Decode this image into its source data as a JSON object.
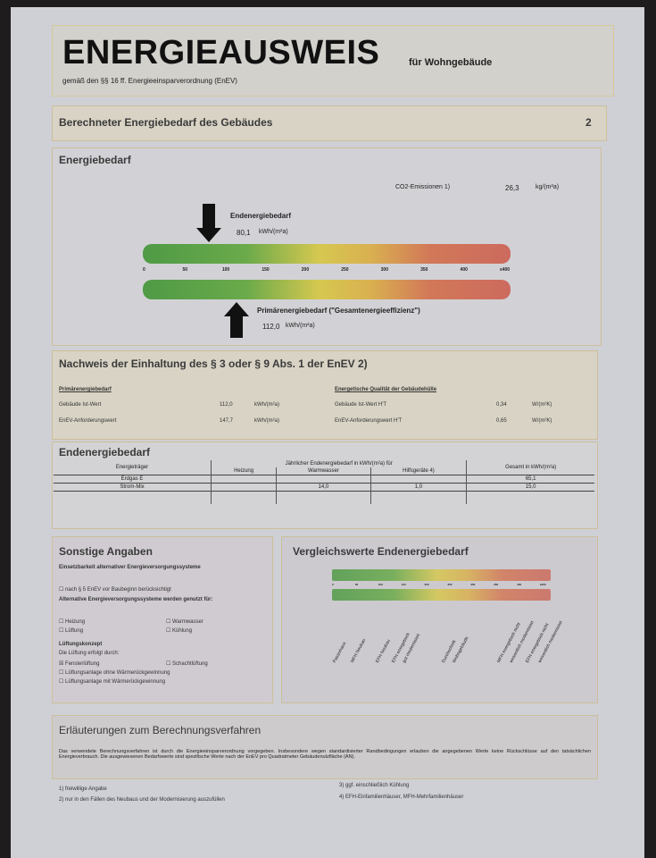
{
  "header": {
    "title": "ENERGIEAUSWEIS",
    "subtitle": "für Wohngebäude",
    "regulation": "gemäß den §§ 16 ff. Energieeinsparverordnung (EnEV)"
  },
  "section_bar": {
    "title": "Berechneter Energiebedarf des Gebäudes",
    "page_number": "2"
  },
  "energiebedarf": {
    "title": "Energiebedarf",
    "co2_label": "CO2-Emissionen 1)",
    "co2_value": "26,3",
    "co2_unit": "kg/(m²a)",
    "end_label": "Endenergiebedarf",
    "end_value": "80,1",
    "end_unit": "kWh/(m²a)",
    "primary_label": "Primärenergiebedarf (\"Gesamtenergieeffizienz\")",
    "primary_value": "112,0",
    "primary_unit": "kWh/(m²a)",
    "scale": [
      "0",
      "50",
      "100",
      "150",
      "200",
      "250",
      "300",
      "350",
      "400",
      "≥400"
    ]
  },
  "nachweis": {
    "title": "Nachweis der Einhaltung des § 3 oder § 9 Abs. 1 der EnEV 2)",
    "left": {
      "heading": "Primärenergiebedarf",
      "rows": [
        {
          "label": "Gebäude Ist-Wert",
          "value": "112,0",
          "unit": "kWh/(m²a)"
        },
        {
          "label": "EnEV-Anforderungswert",
          "value": "147,7",
          "unit": "kWh/(m²a)"
        }
      ]
    },
    "right": {
      "heading": "Energetische Qualität der Gebäudehülle",
      "rows": [
        {
          "label": "Gebäude Ist-Wert H'T",
          "value": "0,34",
          "unit": "W/(m²K)"
        },
        {
          "label": "EnEV-Anforderungswert H'T",
          "value": "0,65",
          "unit": "W/(m²K)"
        }
      ]
    }
  },
  "endenergie": {
    "title": "Endenergiebedarf",
    "col_carrier": "Energieträger",
    "col_group": "Jährlicher Endenergiebedarf in kWh/(m²a) für",
    "col_heating": "Heizung",
    "col_water": "Warmwasser",
    "col_aux": "Hilfsgeräte 4)",
    "col_total": "Gesamt in kWh/(m²a)",
    "rows": [
      {
        "carrier": "Erdgas E",
        "heating": "65,1",
        "water": "",
        "aux": "",
        "total": "65,1"
      },
      {
        "carrier": "Strom-Mix",
        "heating": "",
        "water": "14,0",
        "aux": "1,0",
        "total": "15,0"
      }
    ]
  },
  "sonstige": {
    "title": "Sonstige Angaben",
    "alt_heading": "Einsetzbarkeit alternativer Energieversorgungssysteme",
    "alt_check": "nach § 5 EnEV vor Baubeginn berücksichtigt",
    "use_heading": "Alternative Energieversorgungssysteme werden genutzt für:",
    "opt_heating": "Heizung",
    "opt_water": "Warmwasser",
    "opt_vent": "Lüftung",
    "opt_cool": "Kühlung",
    "vent_heading": "Lüftungskonzept",
    "vent_sub": "Die Lüftung erfolgt durch:",
    "vent_window": "Fensterlüftung",
    "vent_shaft": "Schachtlüftung",
    "vent_no_hr": "Lüftungsanlage ohne Wärmerückgewinnung",
    "vent_hr": "Lüftungsanlage mit Wärmerückgewinnung"
  },
  "vergleich": {
    "title": "Vergleichswerte Endenergiebedarf",
    "scale": [
      "0",
      "50",
      "100",
      "150",
      "200",
      "250",
      "300",
      "350",
      "400",
      "≥400"
    ],
    "labels": [
      "Passivhaus",
      "MFH Neubau",
      "EFH Neubau",
      "EFH energetisch",
      "gut modernisiert",
      "Durchschnitt",
      "Wohngebäude",
      "MFH energetisch nicht",
      "wesentlich modernisiert",
      "EFH energetisch nicht",
      "wesentlich modernisiert"
    ]
  },
  "erlaeuterungen": {
    "title": "Erläuterungen zum Berechnungsverfahren",
    "text": "Das verwendete Berechnungsverfahren ist durch die Energieeinsparverordnung vorgegeben. Insbesondere wegen standardisierter Randbedingungen erlauben die angegebenen Werte keine Rückschlüsse auf den tatsächlichen Energieverbrauch. Die ausgewiesenen Bedarfswerte sind spezifische Werte nach der EnEV pro Quadratmeter Gebäudenutzfläche (AN).",
    "footnotes": [
      "1) freiwillige Angabe",
      "2) nur in den Fällen des Neubaus und der Modernisierung auszufüllen",
      "3) ggf. einschließlich Kühlung",
      "4) EFH-Einfamilienhäuser, MFH-Mehrfamilienhäuser"
    ]
  }
}
